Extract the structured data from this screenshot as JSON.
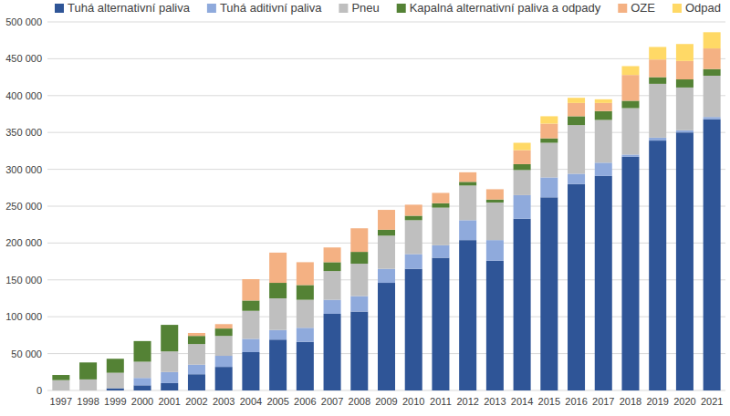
{
  "chart_data": {
    "type": "bar",
    "stacked": true,
    "grid": true,
    "legend": "top",
    "categories": [
      "1997",
      "1998",
      "1999",
      "2000",
      "2001",
      "2002",
      "2003",
      "2004",
      "2005",
      "2006",
      "2007",
      "2008",
      "2009",
      "2010",
      "2011",
      "2012",
      "2013",
      "2014",
      "2015",
      "2016",
      "2017",
      "2018",
      "2019",
      "2020",
      "2021"
    ],
    "series": [
      {
        "name": "Tuhá alternativní paliva",
        "color": "#2f5597",
        "values": [
          0,
          0,
          3000,
          7000,
          10000,
          22000,
          32000,
          52000,
          69000,
          66000,
          104000,
          107000,
          146000,
          165000,
          180000,
          204000,
          176000,
          233000,
          262000,
          280000,
          291000,
          317000,
          339000,
          350000,
          368000
        ]
      },
      {
        "name": "Tuhá aditivní paliva",
        "color": "#8faadc",
        "values": [
          0,
          0,
          0,
          10000,
          15000,
          13000,
          15000,
          18000,
          13000,
          19000,
          19000,
          21000,
          19000,
          20000,
          17000,
          27000,
          28000,
          32000,
          27000,
          14000,
          18000,
          3000,
          4000,
          3000,
          3000
        ]
      },
      {
        "name": "Pneu",
        "color": "#bfbfbf",
        "values": [
          14000,
          15000,
          21000,
          22000,
          28000,
          28000,
          27000,
          38000,
          43000,
          38000,
          39000,
          44000,
          45000,
          46000,
          51000,
          47000,
          51000,
          34000,
          47000,
          66000,
          58000,
          63000,
          73000,
          58000,
          56000
        ]
      },
      {
        "name": "Kapalná alternativní paliva a odpady",
        "color": "#548235",
        "values": [
          7000,
          23000,
          19000,
          28000,
          36000,
          11000,
          10000,
          14000,
          21000,
          20000,
          12000,
          16000,
          8000,
          6000,
          6000,
          5000,
          4000,
          8000,
          6000,
          12000,
          12000,
          10000,
          9000,
          11000,
          9000
        ]
      },
      {
        "name": "OZE",
        "color": "#f4b183",
        "values": [
          0,
          0,
          0,
          0,
          0,
          4000,
          6000,
          29000,
          41000,
          31000,
          20000,
          32000,
          27000,
          15000,
          14000,
          13000,
          14000,
          19000,
          20000,
          18000,
          11000,
          35000,
          24000,
          25000,
          28000
        ]
      },
      {
        "name": "Odpad",
        "color": "#ffd966",
        "values": [
          0,
          0,
          0,
          0,
          0,
          0,
          0,
          0,
          0,
          0,
          0,
          0,
          0,
          0,
          0,
          0,
          0,
          10000,
          10000,
          7000,
          5000,
          12000,
          17000,
          23000,
          22000
        ]
      }
    ],
    "ylim": [
      0,
      500000
    ],
    "yticks": [
      0,
      {
        "value": 50000,
        "label": "50 000"
      },
      {
        "value": 100000,
        "label": "100 000"
      },
      {
        "value": 150000,
        "label": "150 000"
      },
      {
        "value": 200000,
        "label": "200 000"
      },
      {
        "value": 250000,
        "label": "250 000"
      },
      {
        "value": 300000,
        "label": "300 000"
      },
      {
        "value": 350000,
        "label": "350 000"
      },
      {
        "value": 400000,
        "label": "400 000"
      },
      {
        "value": 450000,
        "label": "450 000"
      },
      {
        "value": 500000,
        "label": "500 000"
      }
    ]
  }
}
